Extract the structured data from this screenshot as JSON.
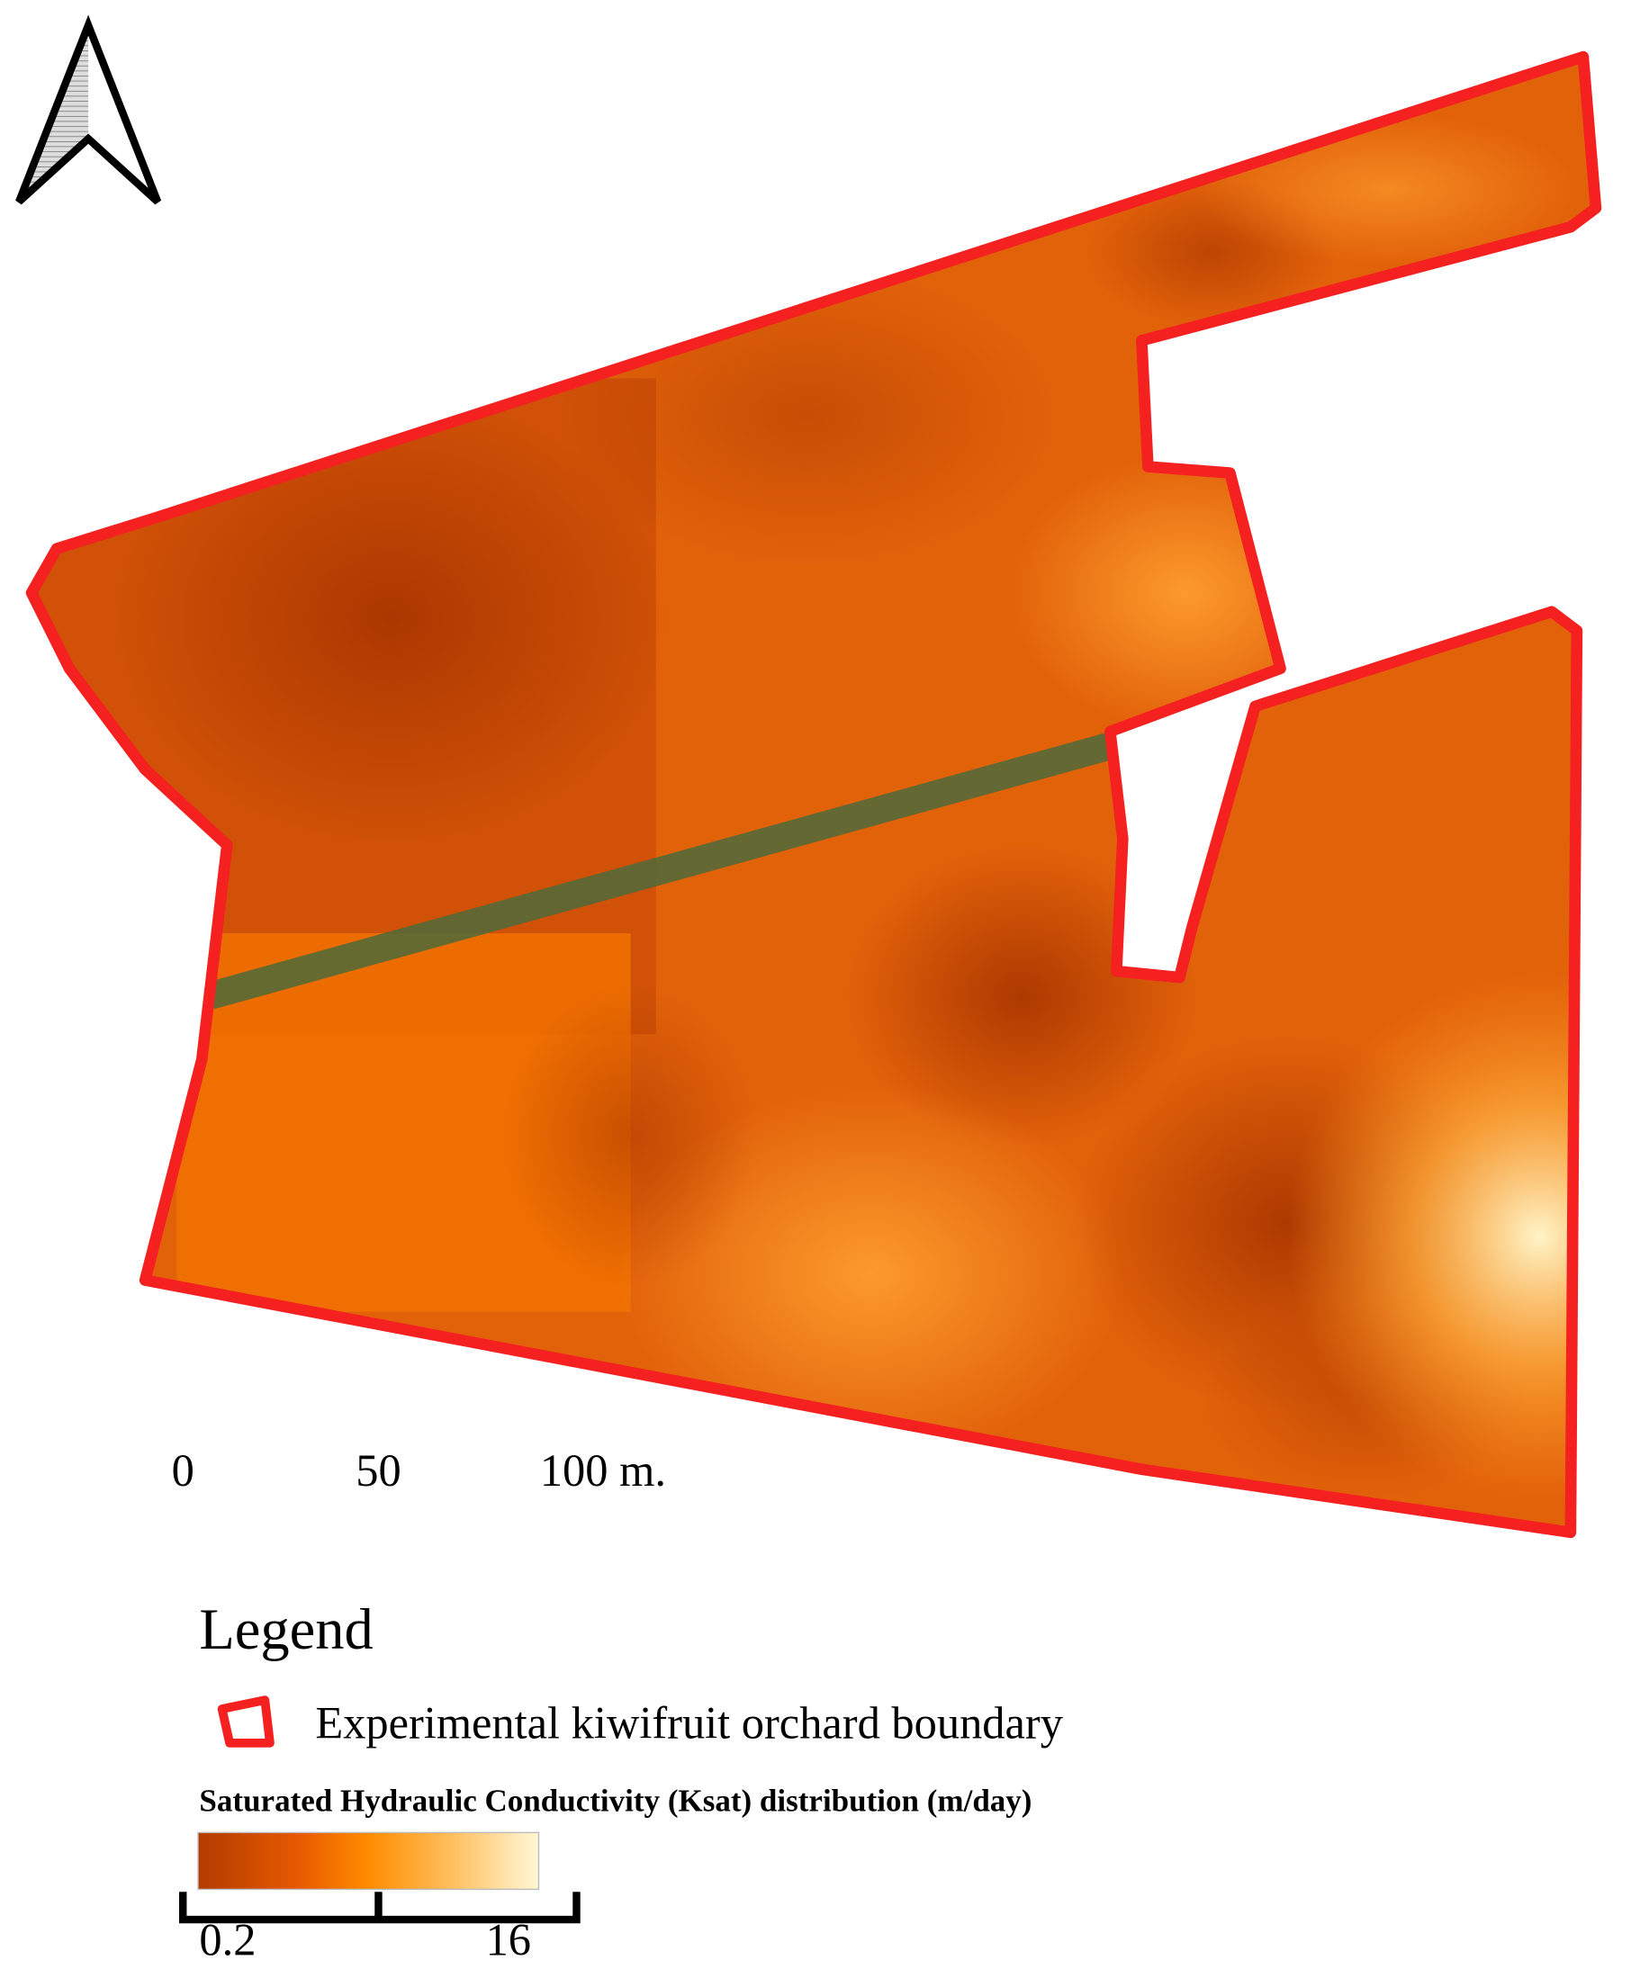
{
  "scale_bar": {
    "labels": [
      "0",
      "50",
      "100 m."
    ]
  },
  "legend": {
    "title": "Legend",
    "boundary_label": "Experimental kiwifruit orchard boundary",
    "colorbar_title": "Saturated Hydraulic Conductivity (Ksat) distribution (m/day)",
    "colorbar_min": "0.2",
    "colorbar_max": "16"
  }
}
